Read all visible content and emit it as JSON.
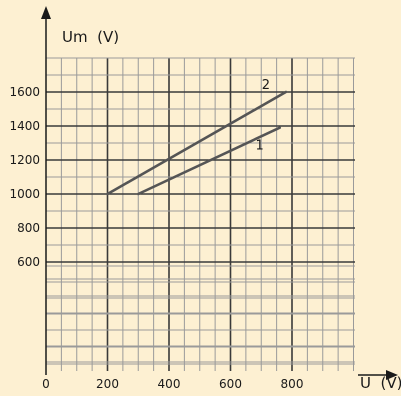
{
  "chart_data": {
    "type": "line",
    "xlabel": "U  (V)",
    "ylabel": "Um  (V)",
    "xlim": [
      0,
      1000
    ],
    "ylim": [
      0,
      1800
    ],
    "x_ticks": [
      "0",
      "200",
      "400",
      "600",
      "800"
    ],
    "y_ticks": [
      "600",
      "800",
      "1000",
      "1200",
      "1400",
      "1600"
    ],
    "grid": true,
    "series": [
      {
        "name": "1",
        "color": "#555555",
        "points": [
          [
            300,
            1000
          ],
          [
            760,
            1390
          ]
        ]
      },
      {
        "name": "2",
        "color": "#555555",
        "points": [
          [
            200,
            1000
          ],
          [
            780,
            1600
          ]
        ]
      }
    ]
  },
  "colors": {
    "background": "#fdf0d2",
    "grid_minor": "#9a9a9a",
    "grid_major": "#3a3a3a",
    "axis": "#1a1a1a",
    "series": "#555555"
  }
}
